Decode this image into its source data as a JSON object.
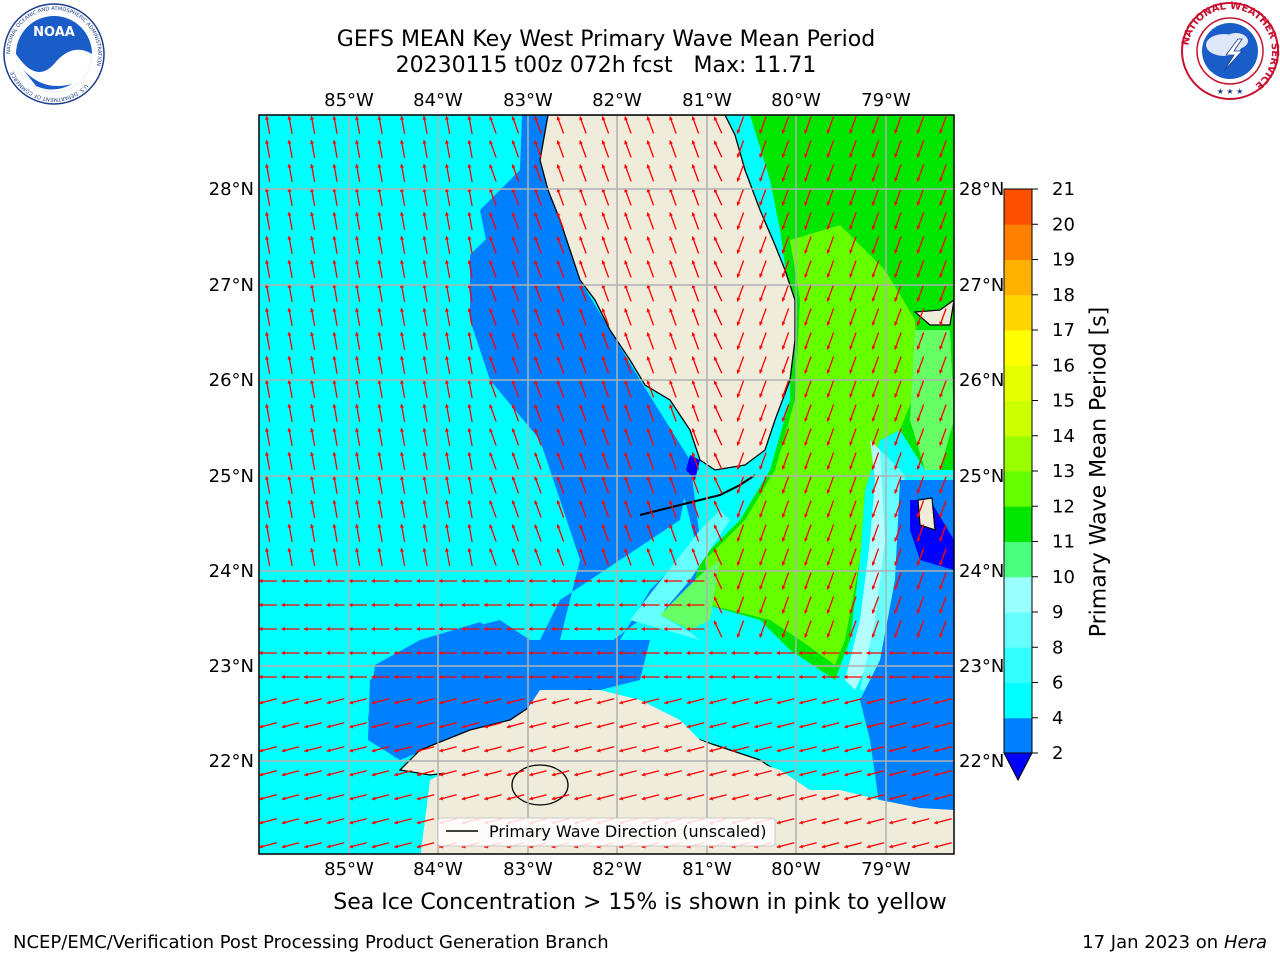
{
  "header": {
    "title_line1": "GEFS MEAN Key West Primary Wave Mean Period",
    "title_line2": "20230115 t00z 072h fcst   Max: 11.71"
  },
  "map": {
    "lon_labels": [
      "85°W",
      "84°W",
      "83°W",
      "82°W",
      "81°W",
      "80°W",
      "79°W"
    ],
    "lat_labels": [
      "28°N",
      "27°N",
      "26°N",
      "25°N",
      "24°N",
      "23°N",
      "22°N"
    ],
    "legend_label": "Primary Wave Direction (unscaled)",
    "colors": {
      "land": "#efecdc",
      "ocean_deep_blue": "#0000ff",
      "ocean_blue": "#0080ff",
      "ocean_cyan": "#00ffff",
      "ocean_lightcyan": "#66ffff",
      "ocean_pale": "#b3ffff",
      "ocean_lightgreen": "#66ff66",
      "ocean_green": "#00e600",
      "ocean_limegreen": "#66ff00",
      "arrow": "#ff0000",
      "grid": "#b0b0b0"
    }
  },
  "colorbar": {
    "label": "Primary Wave Mean Period [s]",
    "ticks": [
      "2",
      "4",
      "6",
      "8",
      "9",
      "10",
      "11",
      "12",
      "13",
      "14",
      "15",
      "16",
      "17",
      "18",
      "19",
      "20",
      "21"
    ],
    "colors": [
      "#0080ff",
      "#00ffff",
      "#33ffff",
      "#66ffff",
      "#99ffff",
      "#4dff80",
      "#00e600",
      "#66ff00",
      "#99ff00",
      "#ccff00",
      "#e6ff00",
      "#ffff00",
      "#ffd700",
      "#ffb000",
      "#ff8000",
      "#ff5000",
      "#ff2000",
      "#ff0000"
    ],
    "under_color": "#0000ff"
  },
  "footer": {
    "note": "Sea Ice Concentration > 15% is shown in pink to yellow",
    "left": "NCEP/EMC/Verification Post Processing Product Generation Branch",
    "right_date": "17 Jan 2023 on ",
    "right_host": "Hera"
  },
  "logos": {
    "noaa_text": "NOAA",
    "noaa_ring_text": "NATIONAL OCEANIC AND ATMOSPHERIC ADMINISTRATION",
    "noaa_ring_text_bottom": "U.S. DEPARTMENT OF COMMERCE",
    "nws_ring_text": "NATIONAL WEATHER SERVICE"
  }
}
